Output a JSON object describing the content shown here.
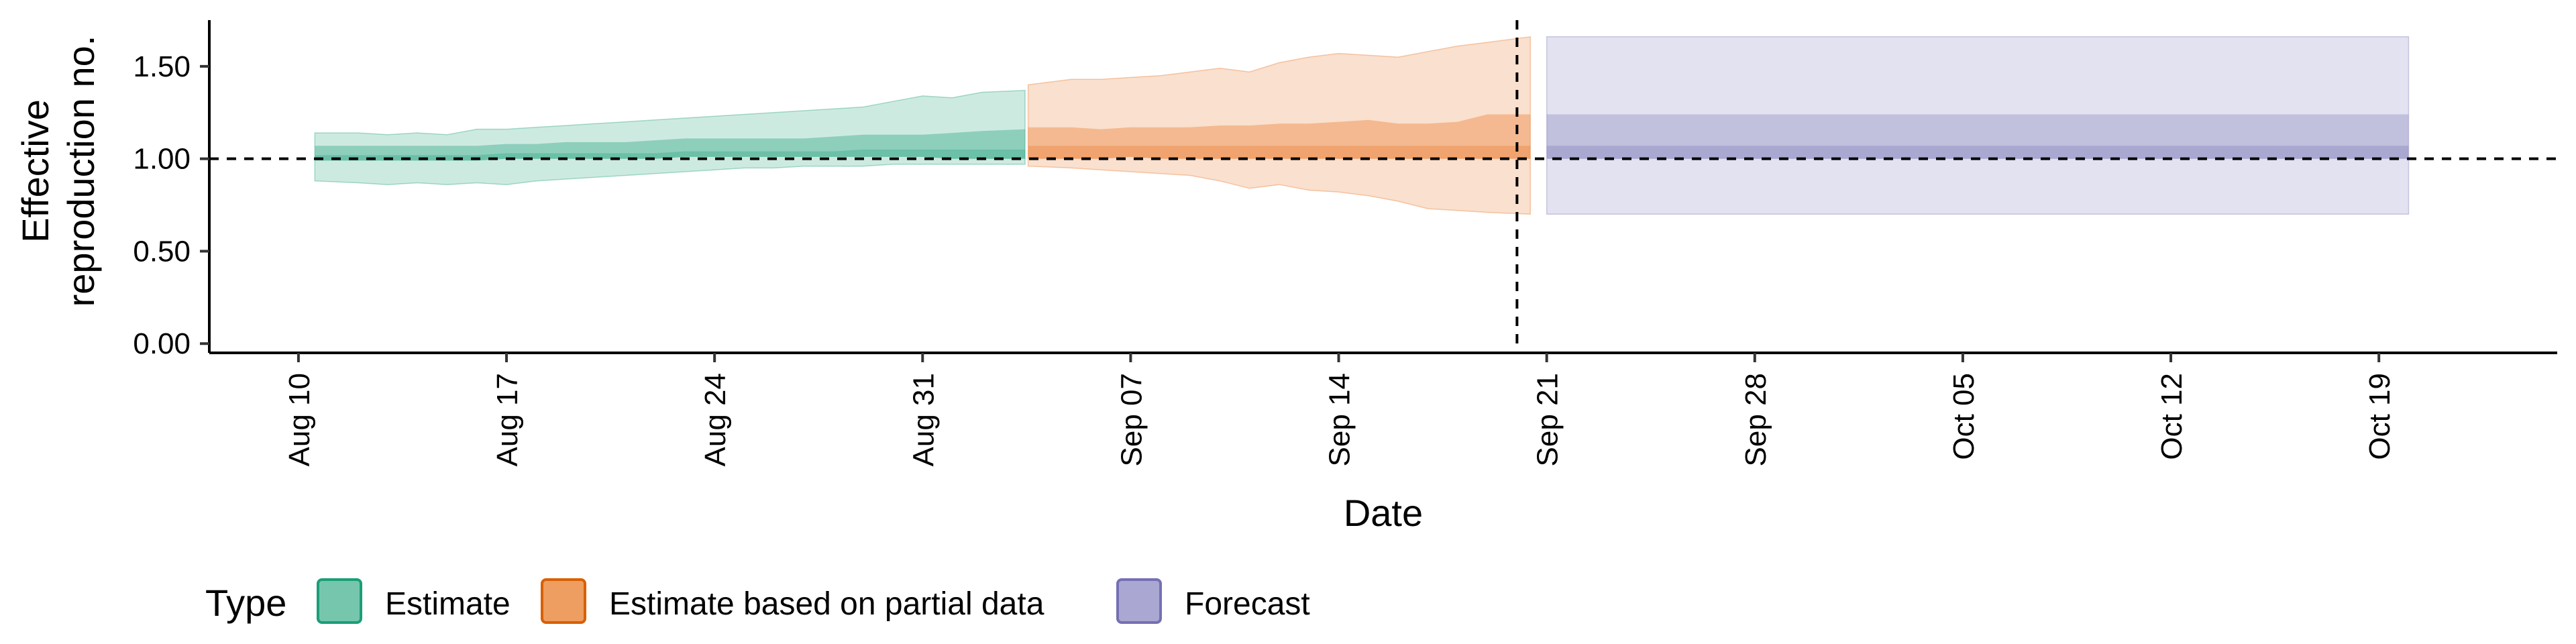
{
  "chart_data": {
    "type": "area",
    "title": "",
    "xlabel": "Date",
    "ylabel_lines": [
      "Effective",
      "reproduction no."
    ],
    "xlim": [
      "2020-08-07",
      "2020-10-25"
    ],
    "ylim": [
      -0.05,
      1.75
    ],
    "y_ticks": [
      {
        "value": 0.0,
        "label": "0.00"
      },
      {
        "value": 0.5,
        "label": "0.50"
      },
      {
        "value": 1.0,
        "label": "1.00"
      },
      {
        "value": 1.5,
        "label": "1.50"
      }
    ],
    "x_ticks": [
      {
        "date": "2020-08-10",
        "label": "Aug 10"
      },
      {
        "date": "2020-08-17",
        "label": "Aug 17"
      },
      {
        "date": "2020-08-24",
        "label": "Aug 24"
      },
      {
        "date": "2020-08-31",
        "label": "Aug 31"
      },
      {
        "date": "2020-09-07",
        "label": "Sep 07"
      },
      {
        "date": "2020-09-14",
        "label": "Sep 14"
      },
      {
        "date": "2020-09-21",
        "label": "Sep 21"
      },
      {
        "date": "2020-09-28",
        "label": "Sep 28"
      },
      {
        "date": "2020-10-05",
        "label": "Oct 05"
      },
      {
        "date": "2020-10-12",
        "label": "Oct 12"
      },
      {
        "date": "2020-10-19",
        "label": "Oct 19"
      }
    ],
    "reference_hline": 1.0,
    "reference_vline": "2020-09-20",
    "legend": {
      "title": "Type",
      "position": "bottom",
      "entries": [
        {
          "key": "estimate",
          "label": "Estimate"
        },
        {
          "key": "partial",
          "label": "Estimate based on partial data"
        },
        {
          "key": "forecast",
          "label": "Forecast"
        }
      ]
    },
    "colors": {
      "estimate": {
        "fill": "#1b9e77",
        "legend_fill": "#76c6ad",
        "stroke": "#1b9e77"
      },
      "partial": {
        "fill": "#e8701f",
        "legend_fill": "#ee9e60",
        "stroke": "#d95f02"
      },
      "forecast": {
        "fill": "#7570b3",
        "legend_fill": "#aaa7d2",
        "stroke": "#7570b3"
      }
    },
    "series": [
      {
        "key": "estimate",
        "dates": [
          "2020-08-11",
          "2020-08-12",
          "2020-08-13",
          "2020-08-14",
          "2020-08-15",
          "2020-08-16",
          "2020-08-17",
          "2020-08-18",
          "2020-08-19",
          "2020-08-20",
          "2020-08-21",
          "2020-08-22",
          "2020-08-23",
          "2020-08-24",
          "2020-08-25",
          "2020-08-26",
          "2020-08-27",
          "2020-08-28",
          "2020-08-29",
          "2020-08-30",
          "2020-08-31",
          "2020-09-01",
          "2020-09-02",
          "2020-09-03"
        ],
        "median": [
          1.02,
          1.02,
          1.02,
          1.02,
          1.02,
          1.02,
          1.03,
          1.03,
          1.03,
          1.03,
          1.03,
          1.03,
          1.04,
          1.04,
          1.04,
          1.04,
          1.04,
          1.04,
          1.05,
          1.05,
          1.05,
          1.05,
          1.05,
          1.05
        ],
        "lower_50": [
          0.99,
          0.99,
          0.99,
          0.99,
          0.99,
          0.99,
          1.0,
          1.0,
          1.0,
          1.0,
          1.0,
          1.0,
          1.01,
          1.01,
          1.01,
          1.01,
          1.01,
          1.01,
          1.01,
          1.01,
          1.01,
          1.0,
          1.0,
          1.0
        ],
        "upper_50": [
          1.07,
          1.07,
          1.07,
          1.07,
          1.07,
          1.07,
          1.08,
          1.08,
          1.09,
          1.09,
          1.09,
          1.1,
          1.11,
          1.11,
          1.11,
          1.11,
          1.11,
          1.12,
          1.13,
          1.13,
          1.13,
          1.14,
          1.15,
          1.16
        ],
        "lower_90": [
          0.88,
          0.87,
          0.86,
          0.87,
          0.86,
          0.87,
          0.86,
          0.88,
          0.89,
          0.9,
          0.91,
          0.92,
          0.93,
          0.94,
          0.95,
          0.95,
          0.96,
          0.96,
          0.96,
          0.97,
          0.97,
          0.97,
          0.97,
          0.97
        ],
        "upper_90": [
          1.14,
          1.14,
          1.13,
          1.14,
          1.13,
          1.16,
          1.16,
          1.17,
          1.18,
          1.19,
          1.2,
          1.21,
          1.22,
          1.23,
          1.24,
          1.25,
          1.26,
          1.27,
          1.28,
          1.31,
          1.34,
          1.33,
          1.36,
          1.37
        ]
      },
      {
        "key": "partial",
        "dates": [
          "2020-09-04",
          "2020-09-05",
          "2020-09-06",
          "2020-09-07",
          "2020-09-08",
          "2020-09-09",
          "2020-09-10",
          "2020-09-11",
          "2020-09-12",
          "2020-09-13",
          "2020-09-14",
          "2020-09-15",
          "2020-09-16",
          "2020-09-17",
          "2020-09-18",
          "2020-09-19",
          "2020-09-20"
        ],
        "median": [
          1.07,
          1.07,
          1.07,
          1.07,
          1.07,
          1.07,
          1.07,
          1.07,
          1.07,
          1.07,
          1.07,
          1.07,
          1.07,
          1.07,
          1.07,
          1.07,
          1.07
        ],
        "lower_50": [
          1.0,
          1.0,
          1.0,
          1.01,
          1.0,
          1.0,
          1.0,
          1.0,
          1.0,
          1.0,
          1.0,
          1.0,
          1.0,
          1.0,
          1.0,
          1.0,
          1.0
        ],
        "upper_50": [
          1.17,
          1.17,
          1.16,
          1.17,
          1.17,
          1.17,
          1.18,
          1.18,
          1.19,
          1.19,
          1.2,
          1.21,
          1.19,
          1.19,
          1.2,
          1.24,
          1.24
        ],
        "lower_90": [
          0.96,
          0.95,
          0.94,
          0.93,
          0.92,
          0.91,
          0.88,
          0.84,
          0.86,
          0.83,
          0.82,
          0.8,
          0.77,
          0.73,
          0.72,
          0.71,
          0.7
        ],
        "upper_90": [
          1.4,
          1.43,
          1.43,
          1.44,
          1.45,
          1.47,
          1.49,
          1.47,
          1.52,
          1.55,
          1.57,
          1.56,
          1.55,
          1.58,
          1.61,
          1.63,
          1.66
        ]
      },
      {
        "key": "forecast",
        "dates": [
          "2020-09-21",
          "2020-10-20"
        ],
        "median": [
          1.07,
          1.07
        ],
        "lower_50": [
          1.0,
          1.0
        ],
        "upper_50": [
          1.24,
          1.24
        ],
        "lower_90": [
          0.7,
          0.7
        ],
        "upper_90": [
          1.66,
          1.66
        ]
      }
    ]
  }
}
